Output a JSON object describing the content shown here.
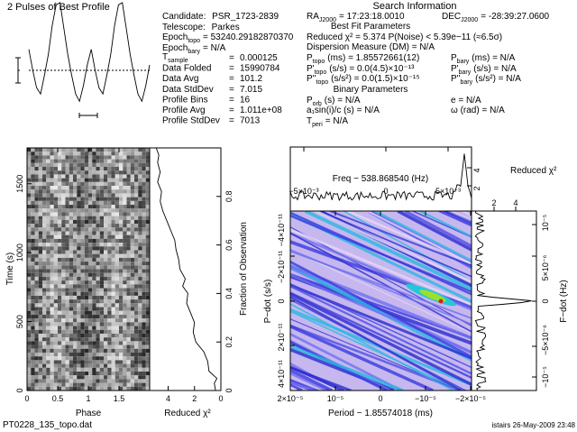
{
  "title_profile": "2 Pulses of Best Profile",
  "candidate_info": {
    "candidate_label": "Candidate:",
    "candidate": "PSR_1723-2839",
    "telescope_label": "Telescope:",
    "telescope": "Parkes",
    "epoch": "Epoch",
    "topo": "topo",
    "bary": "bary",
    "epoch_topo_value": "= 53240.29182870370",
    "epoch_bary_value": "= N/A",
    "t": "T",
    "sample": "sample",
    "rows": [
      {
        "label": "",
        "value": "0.000125"
      },
      {
        "label": "Data Folded",
        "value": "15990784"
      },
      {
        "label": "Data Avg",
        "value": "101.2"
      },
      {
        "label": "Data StdDev",
        "value": "7.015"
      },
      {
        "label": "Profile Bins",
        "value": "16"
      },
      {
        "label": "Profile Avg",
        "value": "1.011e+08"
      },
      {
        "label": "Profile StdDev",
        "value": "7013"
      }
    ],
    "eq": "="
  },
  "search_info": {
    "title": "Search Information",
    "ra": "RA",
    "j2000": "J2000",
    "ra_value": "= 17:23:18.0010",
    "dec": "DEC",
    "dec_value": "= -28:39:27.0600",
    "best_fit_title": "Best Fit Parameters",
    "reduced_chi2": "Reduced χ² = 5.374   P(Noise) < 5.39e−11   (≈6.5σ)",
    "dm": "Dispersion Measure (DM) = N/A",
    "p": "P",
    "pd": "P'",
    "pdd": "P''",
    "p_topo_value": "(ms) =  1.85572661(12)",
    "pd_topo_value": "(s/s) = 0.0(4.5)×10⁻¹³",
    "pdd_topo_value": "(s/s²) = 0.0(1.5)×10⁻¹⁵",
    "p_bary_value": "(ms) = N/A",
    "pd_bary_value": "(s/s) = N/A",
    "pdd_bary_value": "(s/s²) = N/A",
    "binary_title": "Binary Parameters",
    "orb": "orb",
    "porb_value": "(s) = N/A",
    "a1sini": "a₁sin(i)/c (s) = N/A",
    "peri": "peri",
    "tperi_value": "= N/A",
    "e": "e = N/A",
    "omega": "ω (rad) = N/A"
  },
  "footer": {
    "filename": "PT0228_135_topo.dat",
    "stamp": "istairs 26-May-2009 23:48"
  },
  "chart_data": [
    {
      "type": "line",
      "title": "2 Pulses of Best Profile",
      "xlabel": "Phase",
      "xlim": [
        0,
        2
      ],
      "values": [
        0.55,
        0.35,
        0.18,
        0.12,
        0.3,
        0.5,
        0.78,
        0.98,
        1.0,
        0.75,
        0.5,
        0.3,
        0.12,
        0.05,
        0.2,
        0.4
      ]
    },
    {
      "type": "heatmap",
      "title": "Time vs Phase",
      "xlabel": "Phase",
      "ylabel": "Time (s)",
      "xticks": [
        "0",
        "0.5",
        "1",
        "1.5"
      ],
      "yticks": [
        "0",
        "500",
        "1000",
        "1500"
      ],
      "xlim": [
        0,
        2
      ],
      "ylim": [
        0,
        1760
      ]
    },
    {
      "type": "line",
      "xlabel": "Reduced χ²",
      "ylabel": "Fraction of Observation",
      "xticks": [
        "4",
        "2",
        "0"
      ],
      "yticks": [
        "0",
        "0.2",
        "0.4",
        "0.6",
        "0.8"
      ],
      "xlim": [
        5.4,
        0
      ],
      "ylim": [
        0,
        1
      ],
      "fraction": [
        0,
        0.03,
        0.05,
        0.08,
        0.12,
        0.16,
        0.2,
        0.24,
        0.28,
        0.32,
        0.36,
        0.4,
        0.43,
        0.46,
        0.5,
        0.54,
        0.58,
        0.62,
        0.66,
        0.7,
        0.74,
        0.78,
        0.82,
        0.86,
        0.9,
        0.94,
        0.97,
        1.0
      ],
      "chi2": [
        0.4,
        0.5,
        0.3,
        0.9,
        1.0,
        1.3,
        1.9,
        2.1,
        2.0,
        2.3,
        2.6,
        2.5,
        2.9,
        2.7,
        3.1,
        3.2,
        3.4,
        3.5,
        3.8,
        4.1,
        4.4,
        4.6,
        4.5,
        4.8,
        4.6,
        4.8,
        4.7,
        4.9
      ]
    },
    {
      "type": "heatmap",
      "title": "P-Pdot plane",
      "xlabel": "Period − 1.85574018 (ms)",
      "ylabel": "P−dot (s/s)",
      "xticks": [
        "2×10⁻⁵",
        "10⁻⁵",
        "0",
        "−10⁻⁵",
        "−2×10⁻⁵"
      ],
      "yticks": [
        "4×10⁻¹¹",
        "2×10⁻¹¹",
        "0",
        "−2×10⁻¹¹",
        "−4×10⁻¹¹"
      ],
      "top_label": "Freq − 538.868540 (Hz)",
      "top_ticks": [
        "−5×10⁻³",
        "0",
        "5×10⁻³"
      ],
      "right_label": "F−dot (Hz)",
      "right_ticks": [
        "−10⁻⁵",
        "−5×10⁻⁶",
        "0",
        "5×10⁻⁶",
        "10⁻⁵"
      ],
      "chi2_label": "Reduced χ²",
      "chi2_ticks": [
        "2",
        "4"
      ],
      "peak_period": -1.3e-05,
      "peak_pdot": 0
    }
  ]
}
